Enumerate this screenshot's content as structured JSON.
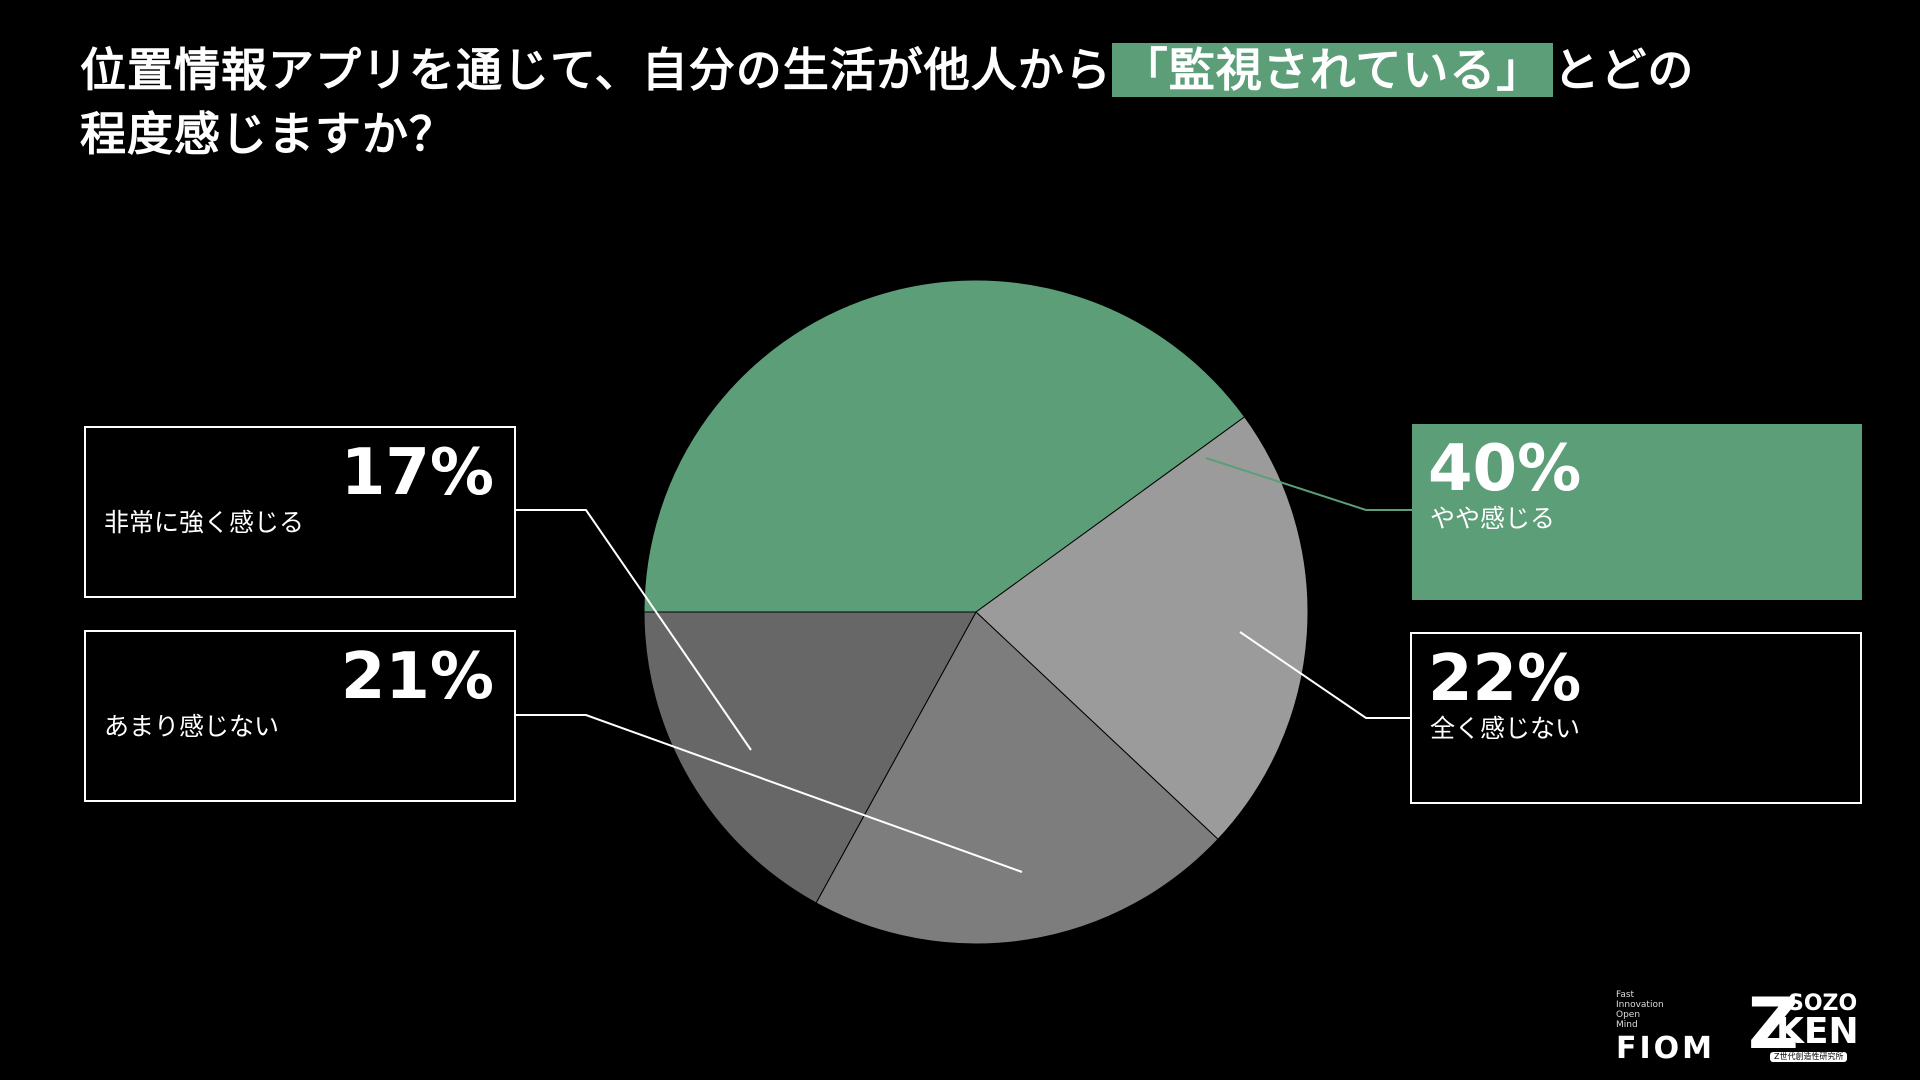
{
  "chart_data": {
    "type": "pie",
    "title_before": "位置情報アプリを通じて、自分の生活が他人から",
    "title_highlight": "「監視されている」",
    "title_after": "とどの",
    "title_line2": "程度感じますか？",
    "slices": [
      {
        "label": "やや感じる",
        "value": 40,
        "display": "40%",
        "color": "#5c9e77"
      },
      {
        "label": "全く感じない",
        "value": 22,
        "display": "22%",
        "color": "#9b9b9b"
      },
      {
        "label": "あまり感じない",
        "value": 21,
        "display": "21%",
        "color": "#7d7d7d"
      },
      {
        "label": "非常に強く感じる",
        "value": 17,
        "display": "17%",
        "color": "#676767"
      }
    ],
    "start_angle_deg": 180,
    "direction": "clockwise"
  },
  "logos": {
    "fiom_small": [
      "Fast",
      "Innovation",
      "Open",
      "Mind"
    ],
    "fiom": "FIOM",
    "zoken_z": "Z",
    "zoken_sozo": "SOZO",
    "zoken_ken": "KEN",
    "zoken_sub": "Z世代創造性研究所"
  },
  "colors": {
    "background": "#000000",
    "accent": "#5c9e77",
    "text": "#ffffff"
  }
}
